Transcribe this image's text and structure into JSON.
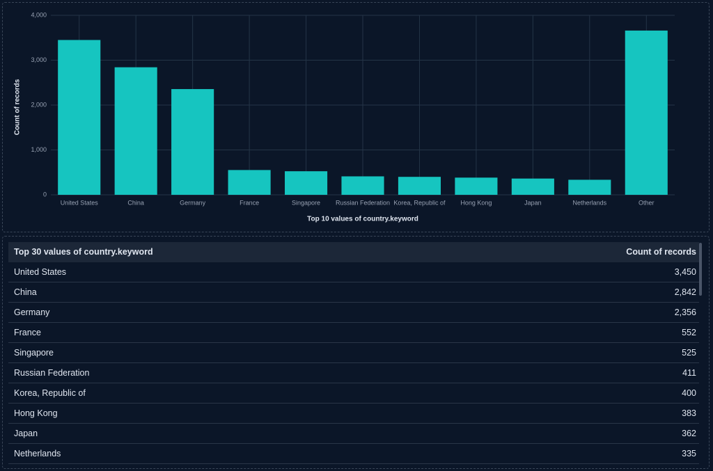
{
  "chart_data": {
    "type": "bar",
    "x_label": "Top 10 values of country.keyword",
    "y_label": "Count of records",
    "categories": [
      "United States",
      "China",
      "Germany",
      "France",
      "Singapore",
      "Russian Federation",
      "Korea, Republic of",
      "Hong Kong",
      "Japan",
      "Netherlands",
      "Other"
    ],
    "values": [
      3450,
      2842,
      2356,
      552,
      525,
      411,
      400,
      383,
      362,
      335,
      3660
    ],
    "color": "#16c5c0",
    "ylim": [
      0,
      4000
    ],
    "yticks": [
      0,
      {
        "value": 1000,
        "label": "1,000"
      },
      {
        "value": 2000,
        "label": "2,000"
      },
      {
        "value": 3000,
        "label": "3,000"
      },
      {
        "value": 4000,
        "label": "4,000"
      }
    ],
    "grid": true
  },
  "table": {
    "header": [
      "Top 30 values of country.keyword",
      "Count of records"
    ],
    "rows": [
      [
        "United States",
        "3,450"
      ],
      [
        "China",
        "2,842"
      ],
      [
        "Germany",
        "2,356"
      ],
      [
        "France",
        "552"
      ],
      [
        "Singapore",
        "525"
      ],
      [
        "Russian Federation",
        "411"
      ],
      [
        "Korea, Republic of",
        "400"
      ],
      [
        "Hong Kong",
        "383"
      ],
      [
        "Japan",
        "362"
      ],
      [
        "Netherlands",
        "335"
      ]
    ]
  }
}
